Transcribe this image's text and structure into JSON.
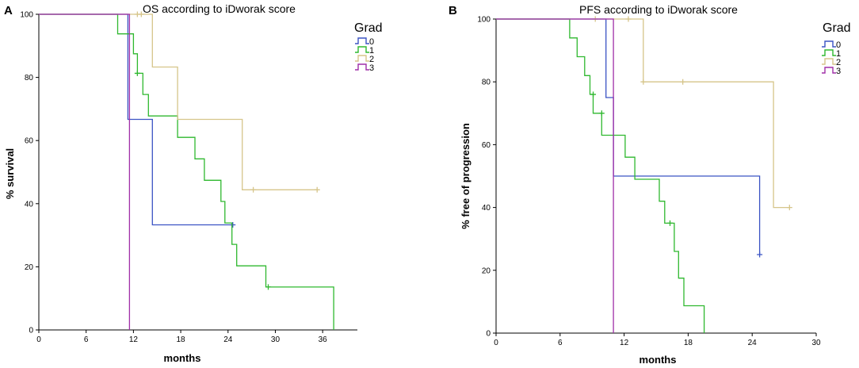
{
  "chart_data": [
    {
      "panel": "A",
      "type": "line",
      "subtype": "kaplan-meier",
      "title": "OS according to iDworak score",
      "xlabel": "months",
      "ylabel": "% survival",
      "xlim": [
        0,
        39
      ],
      "ylim": [
        0,
        100
      ],
      "xticks": [
        0,
        6,
        12,
        18,
        24,
        30,
        36
      ],
      "yticks": [
        0,
        20,
        40,
        60,
        80,
        100
      ],
      "legend": {
        "title": "Grad",
        "position": "top-right"
      },
      "series": [
        {
          "name": "0",
          "color": "#3b53c4",
          "steps": [
            [
              0,
              100
            ],
            [
              11.3,
              100
            ],
            [
              11.3,
              66.7
            ],
            [
              14.4,
              66.7
            ],
            [
              14.4,
              33.3
            ],
            [
              24.6,
              33.3
            ]
          ],
          "censors": [
            [
              24.6,
              33.3
            ]
          ]
        },
        {
          "name": "1",
          "color": "#2fb82f",
          "steps": [
            [
              0,
              100
            ],
            [
              10,
              100
            ],
            [
              10,
              93.8
            ],
            [
              12,
              93.8
            ],
            [
              12,
              87.5
            ],
            [
              12.5,
              87.5
            ],
            [
              12.5,
              81.3
            ],
            [
              13.2,
              81.3
            ],
            [
              13.2,
              74.6
            ],
            [
              13.9,
              74.6
            ],
            [
              13.9,
              67.8
            ],
            [
              17.6,
              67.8
            ],
            [
              17.6,
              61
            ],
            [
              19.8,
              61
            ],
            [
              19.8,
              54.2
            ],
            [
              21,
              54.2
            ],
            [
              21,
              47.4
            ],
            [
              23.1,
              47.4
            ],
            [
              23.1,
              40.7
            ],
            [
              23.6,
              40.7
            ],
            [
              23.6,
              33.9
            ],
            [
              24.5,
              33.9
            ],
            [
              24.5,
              27.1
            ],
            [
              25.1,
              27.1
            ],
            [
              25.1,
              20.3
            ],
            [
              28.8,
              20.3
            ],
            [
              28.8,
              13.6
            ],
            [
              37.4,
              13.6
            ],
            [
              37.4,
              0
            ]
          ],
          "censors": [
            [
              12.5,
              81.3
            ],
            [
              29.1,
              13.6
            ]
          ]
        },
        {
          "name": "2",
          "color": "#d6c58a",
          "steps": [
            [
              0,
              100
            ],
            [
              14.4,
              100
            ],
            [
              14.4,
              83.3
            ],
            [
              17.6,
              83.3
            ],
            [
              17.6,
              66.7
            ],
            [
              25.8,
              66.7
            ],
            [
              25.8,
              44.4
            ],
            [
              35.3,
              44.4
            ]
          ],
          "censors": [
            [
              12.5,
              100
            ],
            [
              13,
              100
            ],
            [
              27.2,
              44.4
            ],
            [
              35.3,
              44.4
            ]
          ]
        },
        {
          "name": "3",
          "color": "#a02fa8",
          "steps": [
            [
              0,
              100
            ],
            [
              11.5,
              100
            ],
            [
              11.5,
              0
            ]
          ],
          "censors": []
        }
      ]
    },
    {
      "panel": "B",
      "type": "line",
      "subtype": "kaplan-meier",
      "title": "PFS according to iDworak score",
      "xlabel": "months",
      "ylabel": "% free of progression",
      "xlim": [
        0,
        30
      ],
      "ylim": [
        0,
        100
      ],
      "xticks": [
        0,
        6,
        12,
        18,
        24,
        30
      ],
      "yticks": [
        0,
        20,
        40,
        60,
        80,
        100
      ],
      "legend": {
        "title": "Grad",
        "position": "top-right"
      },
      "series": [
        {
          "name": "0",
          "color": "#3b53c4",
          "steps": [
            [
              0,
              100
            ],
            [
              10.3,
              100
            ],
            [
              10.3,
              75
            ],
            [
              11,
              75
            ],
            [
              11,
              50
            ],
            [
              24.7,
              50
            ],
            [
              24.7,
              25
            ]
          ],
          "censors": [
            [
              24.7,
              25
            ]
          ]
        },
        {
          "name": "1",
          "color": "#2fb82f",
          "steps": [
            [
              0,
              100
            ],
            [
              6.9,
              100
            ],
            [
              6.9,
              94
            ],
            [
              7.6,
              94
            ],
            [
              7.6,
              88
            ],
            [
              8.3,
              88
            ],
            [
              8.3,
              82
            ],
            [
              8.8,
              82
            ],
            [
              8.8,
              76
            ],
            [
              9.1,
              76
            ],
            [
              9.1,
              70
            ],
            [
              9.9,
              70
            ],
            [
              9.9,
              63
            ],
            [
              12.1,
              63
            ],
            [
              12.1,
              56
            ],
            [
              13,
              56
            ],
            [
              13,
              49
            ],
            [
              15.3,
              49
            ],
            [
              15.3,
              42
            ],
            [
              15.8,
              42
            ],
            [
              15.8,
              35
            ],
            [
              16.7,
              35
            ],
            [
              16.7,
              26
            ],
            [
              17.1,
              26
            ],
            [
              17.1,
              17.5
            ],
            [
              17.6,
              17.5
            ],
            [
              17.6,
              8.7
            ],
            [
              19.5,
              8.7
            ],
            [
              19.5,
              0
            ]
          ],
          "censors": [
            [
              9.1,
              76
            ],
            [
              9.9,
              70
            ],
            [
              16.3,
              35
            ]
          ]
        },
        {
          "name": "2",
          "color": "#d6c58a",
          "steps": [
            [
              0,
              100
            ],
            [
              13.8,
              100
            ],
            [
              13.8,
              80
            ],
            [
              26,
              80
            ],
            [
              26,
              40
            ],
            [
              27.5,
              40
            ]
          ],
          "censors": [
            [
              9.3,
              100
            ],
            [
              12.4,
              100
            ],
            [
              13.8,
              80
            ],
            [
              17.5,
              80
            ],
            [
              27.5,
              40
            ]
          ]
        },
        {
          "name": "3",
          "color": "#a02fa8",
          "steps": [
            [
              0,
              100
            ],
            [
              11,
              100
            ],
            [
              11,
              0
            ]
          ],
          "censors": []
        }
      ]
    }
  ]
}
